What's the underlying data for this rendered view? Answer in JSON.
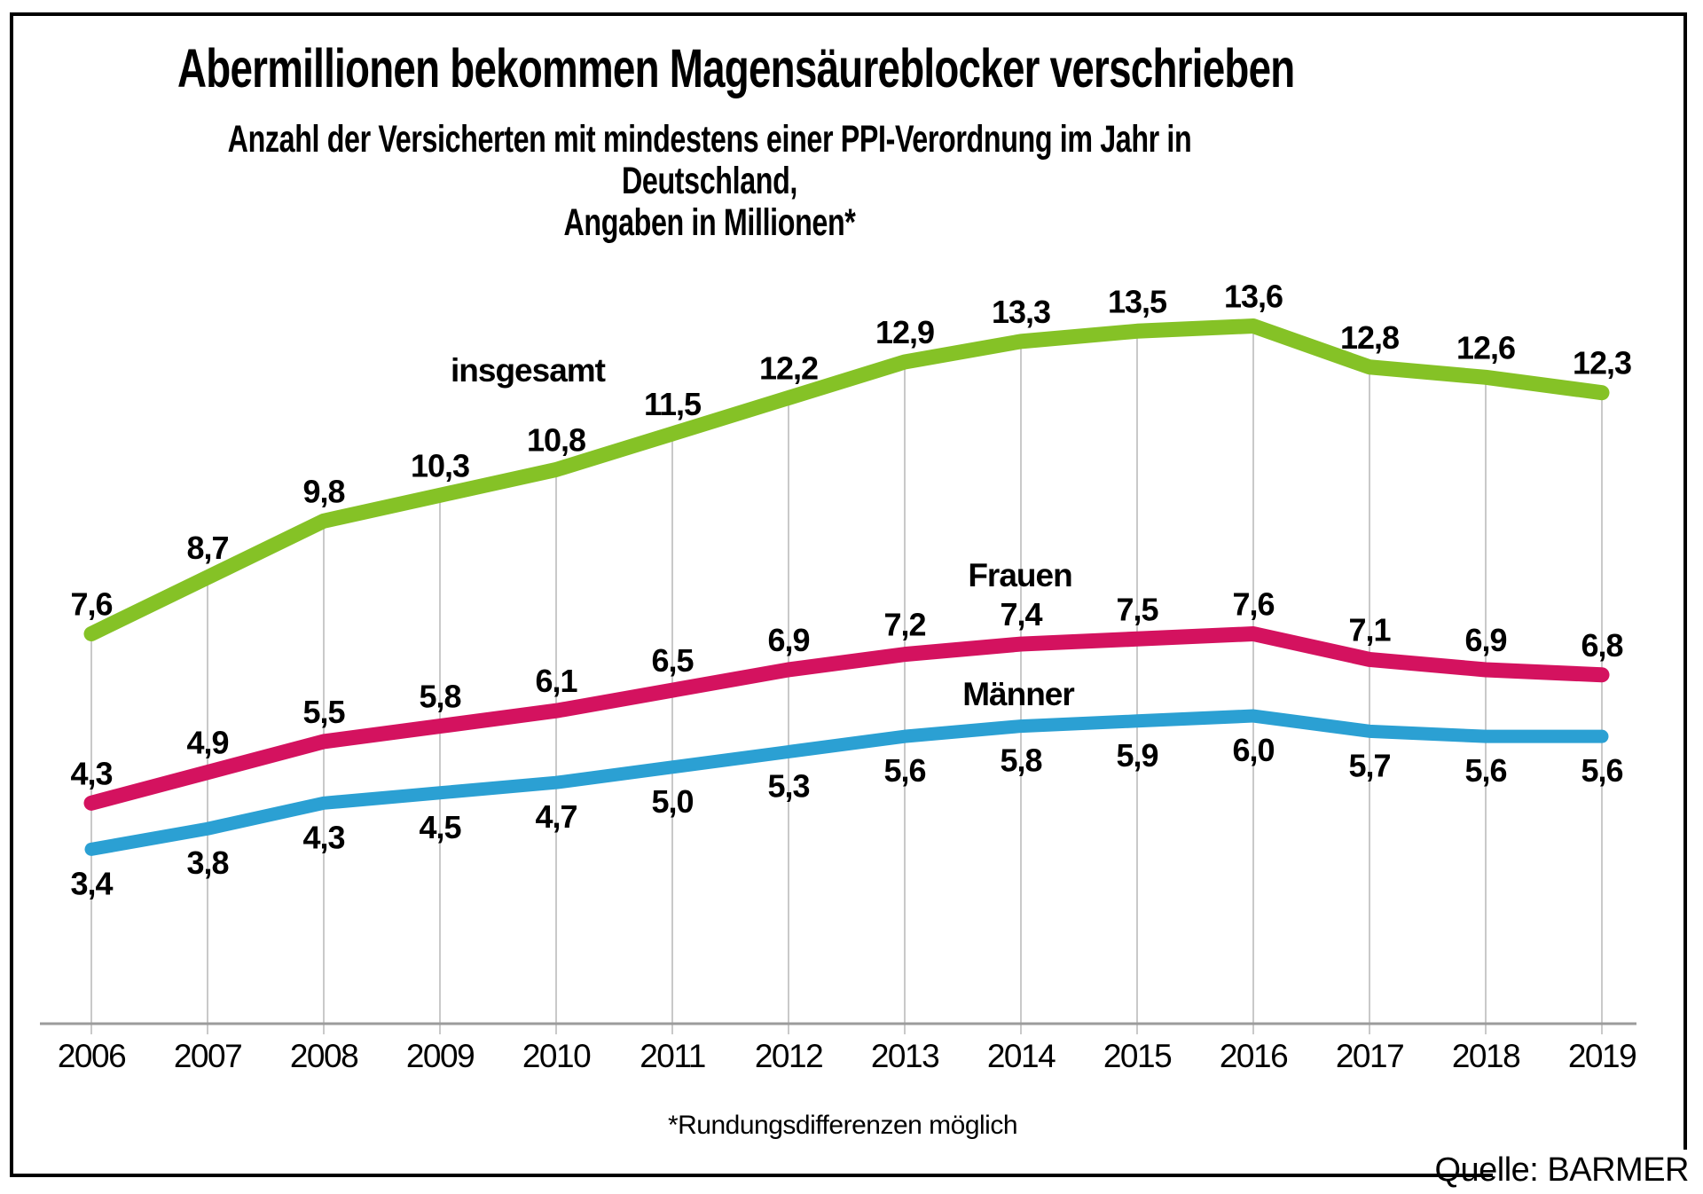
{
  "header": {
    "title": "Abermillionen bekommen Magensäureblocker verschrieben",
    "subtitle_line1": "Anzahl der Versicherten mit mindestens einer PPI-Verordnung im Jahr in Deutschland,",
    "subtitle_line2": "Angaben in Millionen*"
  },
  "footnote": "*Rundungsdifferenzen möglich",
  "source": "Quelle: BARMER",
  "chart_data": {
    "type": "line",
    "categories": [
      "2006",
      "2007",
      "2008",
      "2009",
      "2010",
      "2011",
      "2012",
      "2013",
      "2014",
      "2015",
      "2016",
      "2017",
      "2018",
      "2019"
    ],
    "series": [
      {
        "name": "insgesamt",
        "color": "#85c226",
        "label_position": "above",
        "values": [
          7.6,
          8.7,
          9.8,
          10.3,
          10.8,
          11.5,
          12.2,
          12.9,
          13.3,
          13.5,
          13.6,
          12.8,
          12.6,
          12.3
        ]
      },
      {
        "name": "Frauen",
        "color": "#d4125f",
        "label_position": "above",
        "values": [
          4.3,
          4.9,
          5.5,
          5.8,
          6.1,
          6.5,
          6.9,
          7.2,
          7.4,
          7.5,
          7.6,
          7.1,
          6.9,
          6.8
        ]
      },
      {
        "name": "Männer",
        "color": "#2ba0d3",
        "label_position": "below",
        "values": [
          3.4,
          3.8,
          4.3,
          4.5,
          4.7,
          5.0,
          5.3,
          5.6,
          5.8,
          5.9,
          6.0,
          5.7,
          5.6,
          5.6
        ]
      }
    ],
    "value_label_decimal_separator": ",",
    "gridline_color": "#c9c9c9",
    "axis_color": "#9b9b9b",
    "xlabel": "",
    "ylabel": "",
    "y_axis_baseline_value": 0,
    "grid": "vertical line per year, from total-series point down to axis",
    "legend_position": "inline labels next to lines"
  }
}
